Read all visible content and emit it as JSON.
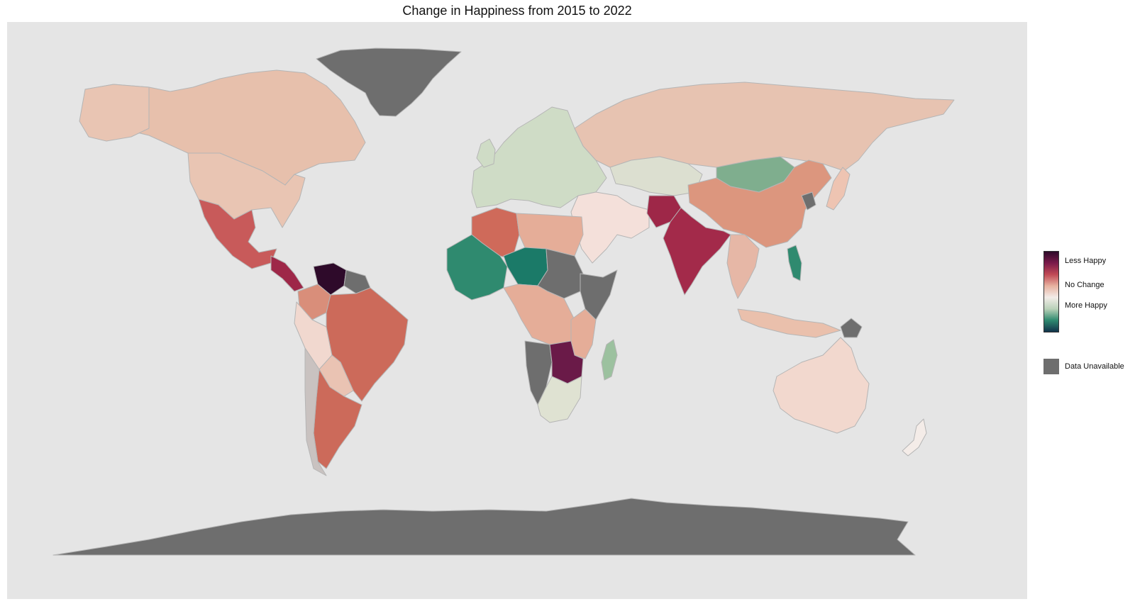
{
  "title": "Change in Happiness from 2015 to 2022",
  "legend": {
    "scale_labels": [
      "Less Happy",
      "No Change",
      "More Happy"
    ],
    "scale_colors": [
      "#2e0a2a",
      "#7a1a4a",
      "#c14a55",
      "#e7b2a0",
      "#f2ece8",
      "#b9d1b8",
      "#2f8a6f",
      "#12334a"
    ],
    "na_label": "Data Unavailable",
    "na_color": "#6e6e6e"
  },
  "colors": {
    "panel_background": "#e5e5e5",
    "country_border": "#b5b5b5",
    "less_happy_dark": "#2e0a2a",
    "less_happy": "#9e2748",
    "slightly_less": "#e7c0ac",
    "no_change": "#f4ece8",
    "slightly_more": "#9cc19f",
    "more_happy": "#1b7a68",
    "most_happy": "#142e48",
    "unavailable": "#6e6e6e"
  },
  "regions": [
    {
      "name": "Canada",
      "class": "slightly_less"
    },
    {
      "name": "United States",
      "class": "slightly_less"
    },
    {
      "name": "Mexico",
      "class": "less_happy"
    },
    {
      "name": "Venezuela",
      "class": "less_happy_dark"
    },
    {
      "name": "Brazil",
      "class": "less_happy"
    },
    {
      "name": "Argentina",
      "class": "less_happy"
    },
    {
      "name": "Greenland",
      "class": "unavailable"
    },
    {
      "name": "Russia",
      "class": "slightly_less"
    },
    {
      "name": "China",
      "class": "less_happy"
    },
    {
      "name": "India",
      "class": "less_happy"
    },
    {
      "name": "Mongolia",
      "class": "slightly_more"
    },
    {
      "name": "Kazakhstan",
      "class": "no_change"
    },
    {
      "name": "Algeria",
      "class": "less_happy"
    },
    {
      "name": "Mali",
      "class": "more_happy"
    },
    {
      "name": "Chad",
      "class": "more_happy"
    },
    {
      "name": "Sudan",
      "class": "unavailable"
    },
    {
      "name": "Zambia",
      "class": "less_happy_dark"
    },
    {
      "name": "Namibia",
      "class": "unavailable"
    },
    {
      "name": "South Africa",
      "class": "no_change"
    },
    {
      "name": "Madagascar",
      "class": "slightly_more"
    },
    {
      "name": "Australia",
      "class": "slightly_less"
    },
    {
      "name": "Antarctica",
      "class": "unavailable"
    }
  ]
}
